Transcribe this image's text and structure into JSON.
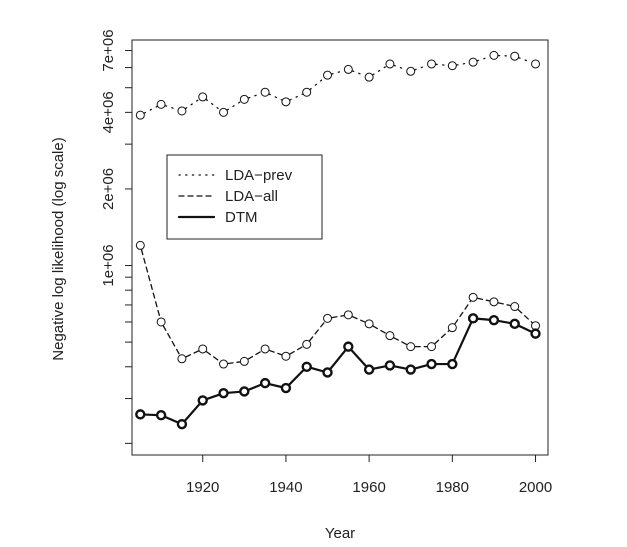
{
  "chart_data": {
    "type": "scatter",
    "title": "",
    "xlabel": "Year",
    "ylabel": "Negative log likelihood (log scale)",
    "y_scale": "log",
    "xlim": [
      1903,
      2003
    ],
    "ylim": [
      180000,
      7700000
    ],
    "x_ticks": [
      1920,
      1940,
      1960,
      1980,
      2000
    ],
    "y_ticks": [
      {
        "value": 1000000,
        "label": "1e+06"
      },
      {
        "value": 2000000,
        "label": "2e+06"
      },
      {
        "value": 4000000,
        "label": "4e+06"
      },
      {
        "value": 7000000,
        "label": "7e+06"
      }
    ],
    "x": [
      1905,
      1910,
      1915,
      1920,
      1925,
      1930,
      1935,
      1940,
      1945,
      1950,
      1955,
      1960,
      1965,
      1970,
      1975,
      1980,
      1985,
      1990,
      1995,
      2000
    ],
    "series": [
      {
        "name": "LDA-prev",
        "line_style": "dotted",
        "values": [
          3900000,
          4300000,
          4050000,
          4600000,
          4000000,
          4500000,
          4800000,
          4400000,
          4800000,
          5600000,
          5900000,
          5500000,
          6200000,
          5800000,
          6200000,
          6100000,
          6300000,
          6700000,
          6650000,
          6200000
        ]
      },
      {
        "name": "LDA-all",
        "line_style": "dashed",
        "values": [
          1200000,
          600000,
          430000,
          470000,
          410000,
          420000,
          470000,
          440000,
          490000,
          620000,
          640000,
          590000,
          530000,
          480000,
          480000,
          570000,
          750000,
          720000,
          690000,
          580000
        ]
      },
      {
        "name": "DTM",
        "line_style": "solid",
        "values": [
          260000,
          258000,
          238000,
          295000,
          315000,
          320000,
          345000,
          330000,
          400000,
          380000,
          480000,
          390000,
          405000,
          390000,
          410000,
          410000,
          620000,
          610000,
          590000,
          540000
        ]
      }
    ],
    "legend": {
      "position": "left-middle",
      "entries": [
        "LDA−prev",
        "LDA−all",
        "DTM"
      ]
    }
  }
}
